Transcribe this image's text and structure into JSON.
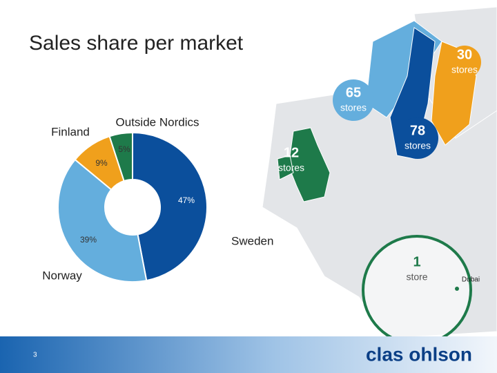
{
  "chart_data": {
    "type": "pie",
    "title": "Sales share per market",
    "categories": [
      "Sweden",
      "Norway",
      "Finland",
      "Outside Nordics"
    ],
    "values": [
      47,
      39,
      9,
      5
    ],
    "value_labels": [
      "47%",
      "39%",
      "9%",
      "5%"
    ],
    "colors": [
      "#0b4f9c",
      "#64aedd",
      "#f0a01c",
      "#1e7a4a"
    ]
  },
  "markets": [
    {
      "count": 30,
      "unit": "stores",
      "color": "#f0a01c"
    },
    {
      "count": 65,
      "unit": "stores",
      "color": "#64aedd"
    },
    {
      "count": 78,
      "unit": "stores",
      "color": "#0b4f9c"
    },
    {
      "count": 12,
      "unit": "stores",
      "color": "#1e7a4a"
    },
    {
      "count": 1,
      "unit": "store",
      "color": "#1e7a4a",
      "place": "Dubai"
    }
  ],
  "footer": {
    "page_number": "3",
    "logo": "clas ohlson"
  }
}
